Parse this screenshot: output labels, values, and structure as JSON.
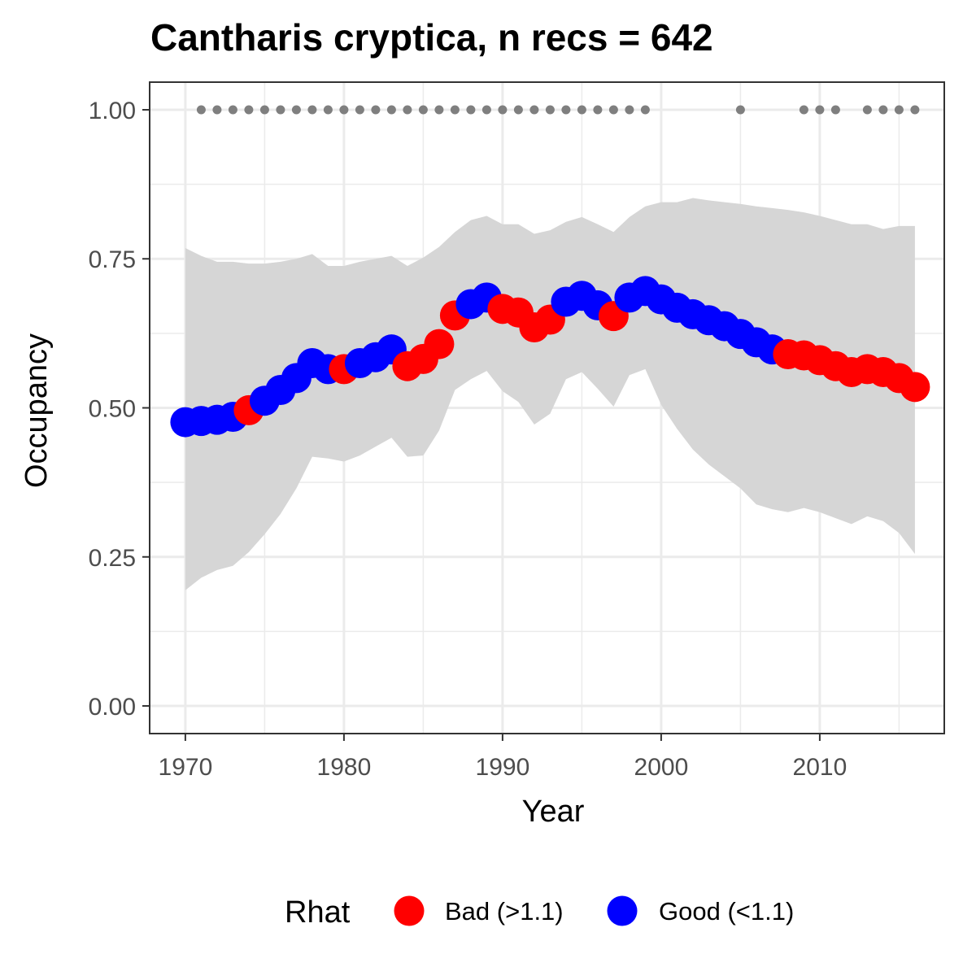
{
  "chart_data": {
    "type": "scatter",
    "title": "Cantharis cryptica, n recs = 642",
    "xlabel": "Year",
    "ylabel": "Occupancy",
    "xlim": [
      1967.8,
      2017.8
    ],
    "ylim": [
      -0.045,
      1.045
    ],
    "x_ticks": [
      1970,
      1980,
      1990,
      2000,
      2010
    ],
    "x_tick_labels": [
      "1970",
      "1980",
      "1990",
      "2000",
      "2010"
    ],
    "y_ticks": [
      0,
      0.25,
      0.5,
      0.75,
      1.0
    ],
    "y_tick_labels": [
      "0.00",
      "0.25",
      "0.50",
      "0.75",
      "1.00"
    ],
    "grid": true,
    "legend": {
      "title": "Rhat",
      "position": "bottom",
      "entries": [
        {
          "label": "Bad (>1.1)",
          "color": "#ff0000"
        },
        {
          "label": "Good (<1.1)",
          "color": "#0000ff"
        }
      ]
    },
    "colors": {
      "bad": "#ff0000",
      "good": "#0000ff",
      "ribbon": "#d6d6d6",
      "record_dots": "#7f7f7f",
      "grid": "#ebebeb",
      "panel_border": "#333333"
    },
    "series": [
      {
        "x": [
          1970,
          1971,
          1972,
          1973,
          1974,
          1975,
          1976,
          1977,
          1978,
          1979,
          1980,
          1981,
          1982,
          1983,
          1984,
          1985,
          1986,
          1987,
          1988,
          1989,
          1990,
          1991,
          1992,
          1993,
          1994,
          1995,
          1996,
          1997,
          1998,
          1999,
          2000,
          2001,
          2002,
          2003,
          2004,
          2005,
          2006,
          2007,
          2008,
          2009,
          2010,
          2011,
          2012,
          2013,
          2014,
          2015,
          2016
        ],
        "y": [
          0.476,
          0.478,
          0.48,
          0.485,
          0.496,
          0.512,
          0.53,
          0.55,
          0.575,
          0.565,
          0.565,
          0.575,
          0.585,
          0.598,
          0.57,
          0.582,
          0.607,
          0.655,
          0.674,
          0.685,
          0.666,
          0.66,
          0.635,
          0.648,
          0.678,
          0.688,
          0.672,
          0.654,
          0.685,
          0.696,
          0.682,
          0.668,
          0.657,
          0.647,
          0.637,
          0.624,
          0.61,
          0.598,
          0.59,
          0.588,
          0.58,
          0.57,
          0.56,
          0.565,
          0.56,
          0.55,
          0.535
        ],
        "rhat": [
          "good",
          "good",
          "good",
          "good",
          "bad",
          "good",
          "good",
          "good",
          "good",
          "good",
          "bad",
          "good",
          "good",
          "good",
          "bad",
          "bad",
          "bad",
          "bad",
          "good",
          "good",
          "bad",
          "bad",
          "bad",
          "bad",
          "good",
          "good",
          "good",
          "bad",
          "good",
          "good",
          "good",
          "good",
          "good",
          "good",
          "good",
          "good",
          "good",
          "good",
          "bad",
          "bad",
          "bad",
          "bad",
          "bad",
          "bad",
          "bad",
          "bad",
          "bad"
        ],
        "ci_upper": [
          0.768,
          0.755,
          0.745,
          0.745,
          0.742,
          0.742,
          0.745,
          0.75,
          0.758,
          0.738,
          0.738,
          0.745,
          0.75,
          0.755,
          0.738,
          0.752,
          0.77,
          0.795,
          0.815,
          0.822,
          0.808,
          0.808,
          0.792,
          0.798,
          0.812,
          0.82,
          0.808,
          0.795,
          0.82,
          0.838,
          0.845,
          0.845,
          0.852,
          0.848,
          0.845,
          0.842,
          0.838,
          0.835,
          0.832,
          0.828,
          0.822,
          0.815,
          0.808,
          0.808,
          0.8,
          0.805,
          0.805
        ],
        "ci_lower": [
          0.194,
          0.215,
          0.228,
          0.235,
          0.258,
          0.288,
          0.322,
          0.365,
          0.418,
          0.415,
          0.41,
          0.42,
          0.435,
          0.45,
          0.418,
          0.42,
          0.462,
          0.53,
          0.548,
          0.562,
          0.528,
          0.51,
          0.472,
          0.49,
          0.548,
          0.56,
          0.532,
          0.502,
          0.555,
          0.565,
          0.505,
          0.465,
          0.43,
          0.405,
          0.385,
          0.365,
          0.338,
          0.33,
          0.325,
          0.332,
          0.325,
          0.315,
          0.305,
          0.318,
          0.31,
          0.29,
          0.255
        ]
      }
    ],
    "record_years": [
      1971,
      1972,
      1973,
      1974,
      1975,
      1976,
      1977,
      1978,
      1979,
      1980,
      1981,
      1982,
      1983,
      1984,
      1985,
      1986,
      1987,
      1988,
      1989,
      1990,
      1991,
      1992,
      1993,
      1994,
      1995,
      1996,
      1997,
      1998,
      1999,
      2005,
      2009,
      2010,
      2011,
      2013,
      2014,
      2015,
      2016
    ]
  }
}
